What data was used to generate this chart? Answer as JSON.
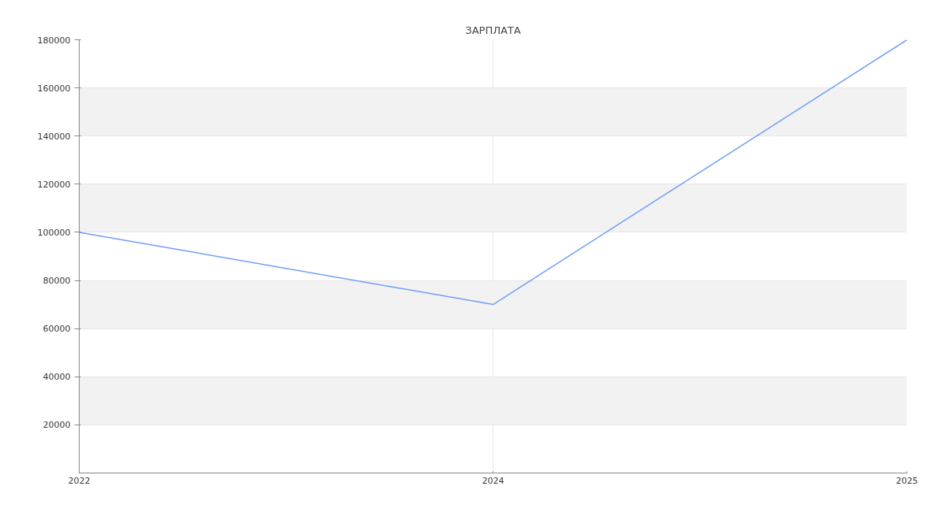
{
  "chart_data": {
    "type": "line",
    "title": "ЗАРПЛАТА",
    "categories": [
      "2022",
      "2024",
      "2025"
    ],
    "series": [
      {
        "color": "#6f9ef7",
        "values": [
          100000,
          70000,
          180000
        ]
      }
    ],
    "ylim": [
      0,
      180000
    ],
    "yticks": [
      20000,
      40000,
      60000,
      80000,
      100000,
      120000,
      140000,
      160000,
      180000
    ],
    "grid": true,
    "marker": "none",
    "line_style": "solid"
  }
}
